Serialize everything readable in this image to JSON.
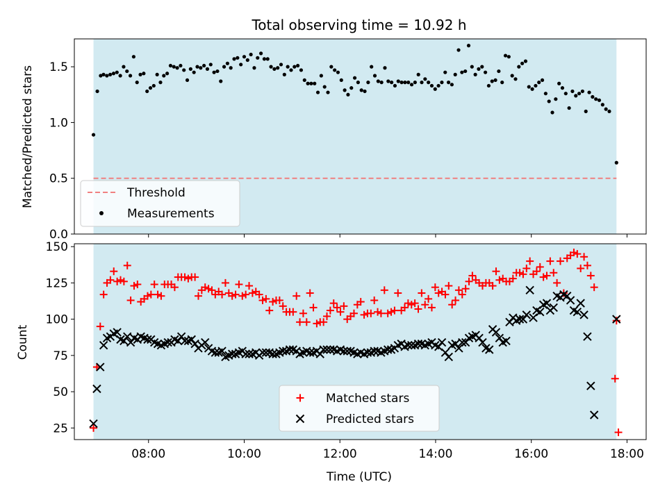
{
  "title": "Total observing time = 10.92 h",
  "colors": {
    "span_fill": "#add8e6",
    "threshold": "#f08080",
    "measurement": "#000000",
    "matched": "#ff0000",
    "predicted": "#000000"
  },
  "chart_data": [
    {
      "type": "scatter",
      "panel": "top",
      "ylabel": "Matched/Predicted stars",
      "xlim": [
        6.45,
        18.4
      ],
      "ylim": [
        0,
        1.75
      ],
      "yticks": [
        0.0,
        0.5,
        1.0,
        1.5
      ],
      "ytick_labels": [
        "0.0",
        "0.5",
        "1.0",
        "1.5"
      ],
      "observing_span": [
        6.85,
        17.78
      ],
      "threshold": {
        "name": "Threshold",
        "value": 0.5,
        "x_range": [
          6.85,
          17.78
        ]
      },
      "legend": {
        "placement": "lower-left",
        "entries": [
          "Threshold",
          "Measurements"
        ]
      },
      "series": [
        {
          "name": "Measurements",
          "points": [
            [
              6.85,
              0.89
            ],
            [
              6.93,
              1.28
            ],
            [
              7.0,
              1.42
            ],
            [
              7.06,
              1.43
            ],
            [
              7.13,
              1.42
            ],
            [
              7.2,
              1.43
            ],
            [
              7.27,
              1.44
            ],
            [
              7.34,
              1.45
            ],
            [
              7.41,
              1.42
            ],
            [
              7.48,
              1.5
            ],
            [
              7.55,
              1.46
            ],
            [
              7.62,
              1.42
            ],
            [
              7.69,
              1.59
            ],
            [
              7.76,
              1.36
            ],
            [
              7.83,
              1.43
            ],
            [
              7.9,
              1.44
            ],
            [
              7.97,
              1.28
            ],
            [
              8.04,
              1.31
            ],
            [
              8.11,
              1.33
            ],
            [
              8.18,
              1.43
            ],
            [
              8.25,
              1.36
            ],
            [
              8.32,
              1.42
            ],
            [
              8.39,
              1.44
            ],
            [
              8.46,
              1.51
            ],
            [
              8.53,
              1.5
            ],
            [
              8.6,
              1.49
            ],
            [
              8.67,
              1.51
            ],
            [
              8.74,
              1.47
            ],
            [
              8.81,
              1.38
            ],
            [
              8.88,
              1.48
            ],
            [
              8.95,
              1.45
            ],
            [
              9.02,
              1.5
            ],
            [
              9.09,
              1.49
            ],
            [
              9.16,
              1.51
            ],
            [
              9.23,
              1.48
            ],
            [
              9.3,
              1.52
            ],
            [
              9.37,
              1.45
            ],
            [
              9.44,
              1.46
            ],
            [
              9.51,
              1.37
            ],
            [
              9.58,
              1.5
            ],
            [
              9.65,
              1.53
            ],
            [
              9.72,
              1.49
            ],
            [
              9.79,
              1.57
            ],
            [
              9.86,
              1.58
            ],
            [
              9.93,
              1.52
            ],
            [
              10.0,
              1.59
            ],
            [
              10.07,
              1.56
            ],
            [
              10.14,
              1.61
            ],
            [
              10.21,
              1.49
            ],
            [
              10.28,
              1.58
            ],
            [
              10.35,
              1.62
            ],
            [
              10.42,
              1.57
            ],
            [
              10.49,
              1.57
            ],
            [
              10.56,
              1.5
            ],
            [
              10.63,
              1.48
            ],
            [
              10.7,
              1.49
            ],
            [
              10.77,
              1.52
            ],
            [
              10.84,
              1.43
            ],
            [
              10.91,
              1.5
            ],
            [
              10.98,
              1.47
            ],
            [
              11.05,
              1.5
            ],
            [
              11.12,
              1.51
            ],
            [
              11.19,
              1.47
            ],
            [
              11.26,
              1.38
            ],
            [
              11.33,
              1.35
            ],
            [
              11.4,
              1.35
            ],
            [
              11.47,
              1.35
            ],
            [
              11.54,
              1.27
            ],
            [
              11.61,
              1.42
            ],
            [
              11.68,
              1.32
            ],
            [
              11.75,
              1.27
            ],
            [
              11.82,
              1.5
            ],
            [
              11.89,
              1.47
            ],
            [
              11.96,
              1.45
            ],
            [
              12.03,
              1.38
            ],
            [
              12.1,
              1.29
            ],
            [
              12.17,
              1.25
            ],
            [
              12.24,
              1.31
            ],
            [
              12.31,
              1.4
            ],
            [
              12.38,
              1.36
            ],
            [
              12.45,
              1.29
            ],
            [
              12.52,
              1.28
            ],
            [
              12.59,
              1.36
            ],
            [
              12.66,
              1.5
            ],
            [
              12.73,
              1.42
            ],
            [
              12.8,
              1.37
            ],
            [
              12.87,
              1.36
            ],
            [
              12.94,
              1.49
            ],
            [
              13.01,
              1.37
            ],
            [
              13.08,
              1.36
            ],
            [
              13.15,
              1.33
            ],
            [
              13.22,
              1.37
            ],
            [
              13.29,
              1.36
            ],
            [
              13.36,
              1.36
            ],
            [
              13.43,
              1.36
            ],
            [
              13.5,
              1.34
            ],
            [
              13.57,
              1.36
            ],
            [
              13.64,
              1.43
            ],
            [
              13.71,
              1.36
            ],
            [
              13.78,
              1.39
            ],
            [
              13.85,
              1.36
            ],
            [
              13.92,
              1.33
            ],
            [
              13.99,
              1.3
            ],
            [
              14.06,
              1.33
            ],
            [
              14.13,
              1.36
            ],
            [
              14.2,
              1.45
            ],
            [
              14.27,
              1.36
            ],
            [
              14.34,
              1.34
            ],
            [
              14.41,
              1.43
            ],
            [
              14.48,
              1.65
            ],
            [
              14.55,
              1.45
            ],
            [
              14.62,
              1.46
            ],
            [
              14.69,
              1.69
            ],
            [
              14.76,
              1.5
            ],
            [
              14.83,
              1.43
            ],
            [
              14.9,
              1.48
            ],
            [
              14.97,
              1.5
            ],
            [
              15.04,
              1.45
            ],
            [
              15.11,
              1.33
            ],
            [
              15.18,
              1.37
            ],
            [
              15.25,
              1.38
            ],
            [
              15.32,
              1.46
            ],
            [
              15.39,
              1.36
            ],
            [
              15.46,
              1.6
            ],
            [
              15.53,
              1.59
            ],
            [
              15.6,
              1.42
            ],
            [
              15.67,
              1.39
            ],
            [
              15.74,
              1.5
            ],
            [
              15.81,
              1.53
            ],
            [
              15.88,
              1.55
            ],
            [
              15.95,
              1.32
            ],
            [
              16.02,
              1.3
            ],
            [
              16.09,
              1.33
            ],
            [
              16.16,
              1.36
            ],
            [
              16.23,
              1.38
            ],
            [
              16.3,
              1.26
            ],
            [
              16.37,
              1.19
            ],
            [
              16.44,
              1.09
            ],
            [
              16.51,
              1.21
            ],
            [
              16.58,
              1.35
            ],
            [
              16.65,
              1.31
            ],
            [
              16.72,
              1.26
            ],
            [
              16.79,
              1.13
            ],
            [
              16.86,
              1.28
            ],
            [
              16.93,
              1.24
            ],
            [
              17.0,
              1.26
            ],
            [
              17.07,
              1.28
            ],
            [
              17.14,
              1.1
            ],
            [
              17.21,
              1.27
            ],
            [
              17.28,
              1.23
            ],
            [
              17.35,
              1.21
            ],
            [
              17.42,
              1.2
            ],
            [
              17.49,
              1.16
            ],
            [
              17.56,
              1.12
            ],
            [
              17.63,
              1.1
            ],
            [
              17.78,
              0.64
            ]
          ]
        }
      ]
    },
    {
      "type": "scatter",
      "panel": "bottom",
      "xlabel": "Time (UTC)",
      "ylabel": "Count",
      "xlim": [
        6.45,
        18.4
      ],
      "ylim": [
        17,
        152
      ],
      "xticks": [
        8,
        10,
        12,
        14,
        16,
        18
      ],
      "xtick_labels": [
        "08:00",
        "10:00",
        "12:00",
        "14:00",
        "16:00",
        "18:00"
      ],
      "yticks": [
        25,
        50,
        75,
        100,
        125,
        150
      ],
      "ytick_labels": [
        "25",
        "50",
        "75",
        "100",
        "125",
        "150"
      ],
      "observing_span": [
        6.85,
        17.78
      ],
      "legend": {
        "placement": "lower-center",
        "entries": [
          "Matched stars",
          "Predicted stars"
        ]
      },
      "series": [
        {
          "name": "Matched stars",
          "marker": "plus",
          "x_start": 6.85,
          "x_step": 0.0707,
          "x_last": 17.78,
          "values": [
            25,
            67,
            95,
            117,
            125,
            127,
            133,
            126,
            127,
            126,
            137,
            113,
            123,
            124,
            112,
            114,
            116,
            117,
            124,
            117,
            116,
            124,
            124,
            124,
            122,
            129,
            129,
            129,
            128,
            129,
            129,
            116,
            120,
            122,
            121,
            120,
            117,
            119,
            117,
            125,
            118,
            116,
            117,
            124,
            116,
            117,
            123,
            118,
            119,
            117,
            113,
            114,
            106,
            112,
            113,
            113,
            109,
            105,
            105,
            105,
            116,
            98,
            104,
            98,
            118,
            108,
            97,
            98,
            98,
            102,
            106,
            111,
            108,
            105,
            109,
            100,
            102,
            104,
            110,
            112,
            103,
            104,
            104,
            113,
            105,
            104,
            120,
            104,
            105,
            106,
            118,
            106,
            108,
            111,
            110,
            111,
            107,
            118,
            110,
            114,
            108,
            122,
            118,
            119,
            117,
            123,
            110,
            113,
            120,
            117,
            121,
            126,
            130,
            127,
            125,
            123,
            125,
            125,
            123,
            133,
            127,
            128,
            126,
            126,
            128,
            132,
            132,
            131,
            135,
            140,
            131,
            133,
            136,
            129,
            130,
            140,
            132,
            125,
            140,
            118,
            142,
            144,
            146,
            145,
            135,
            143,
            137,
            130,
            122,
            99
          ],
          "extra_points": [
            [
              17.75,
              59
            ],
            [
              17.82,
              22
            ]
          ]
        },
        {
          "name": "Predicted stars",
          "marker": "x",
          "x_start": 6.85,
          "x_step": 0.0707,
          "x_last": 17.78,
          "values": [
            28,
            52,
            67,
            82,
            87,
            88,
            90,
            91,
            86,
            85,
            88,
            84,
            87,
            86,
            88,
            87,
            86,
            86,
            84,
            83,
            82,
            83,
            84,
            84,
            86,
            85,
            88,
            85,
            85,
            86,
            83,
            80,
            82,
            84,
            80,
            78,
            77,
            77,
            78,
            74,
            75,
            76,
            76,
            77,
            78,
            76,
            76,
            76,
            77,
            75,
            77,
            77,
            77,
            76,
            76,
            77,
            78,
            78,
            79,
            79,
            78,
            76,
            77,
            78,
            77,
            77,
            78,
            76,
            79,
            79,
            79,
            79,
            78,
            79,
            78,
            78,
            78,
            77,
            76,
            77,
            76,
            77,
            77,
            78,
            78,
            77,
            78,
            79,
            79,
            80,
            82,
            83,
            81,
            82,
            82,
            82,
            83,
            83,
            82,
            83,
            84,
            82,
            81,
            84,
            77,
            74,
            82,
            83,
            80,
            84,
            84,
            87,
            88,
            89,
            87,
            84,
            80,
            79,
            93,
            91,
            87,
            84,
            85,
            98,
            101,
            99,
            100,
            100,
            103,
            120,
            101,
            106,
            105,
            110,
            111,
            106,
            108,
            116,
            115,
            117,
            116,
            113,
            106,
            105,
            111,
            103,
            88,
            54,
            34,
            100
          ]
        }
      ]
    }
  ]
}
